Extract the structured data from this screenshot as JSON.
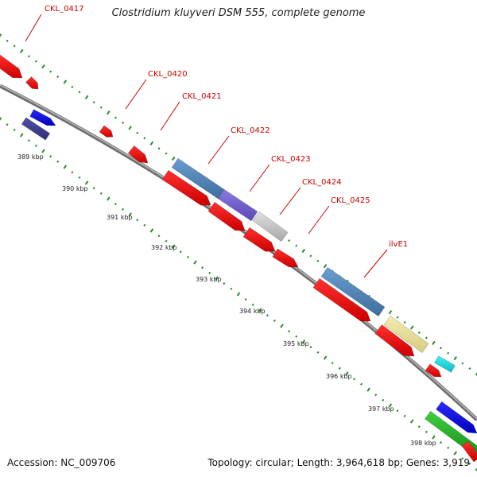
{
  "title": "Clostridium kluyveri DSM 555, complete genome",
  "footer": {
    "accession": "Accession: NC_009706",
    "stats": "Topology: circular; Length: 3,964,618 bp; Genes: 3,919"
  },
  "colors": {
    "forward_cds": "#1a1aee",
    "reverse_cds": "#ee0000",
    "backbone": "#8a8a8a",
    "gc_dots": "#2a8a2a",
    "label": "#cc0000"
  },
  "gene_labels": [
    "CKL_0417",
    "CKL_0420",
    "CKL_0421",
    "CKL_0422",
    "CKL_0423",
    "CKL_0424",
    "CKL_0425",
    "ilvE1"
  ],
  "kbp_labels": [
    "389 kbp",
    "390 kbp",
    "391 kbp",
    "392 kbp",
    "393 kbp",
    "394 kbp",
    "395 kbp",
    "396 kbp",
    "397 kbp",
    "398 kbp"
  ]
}
